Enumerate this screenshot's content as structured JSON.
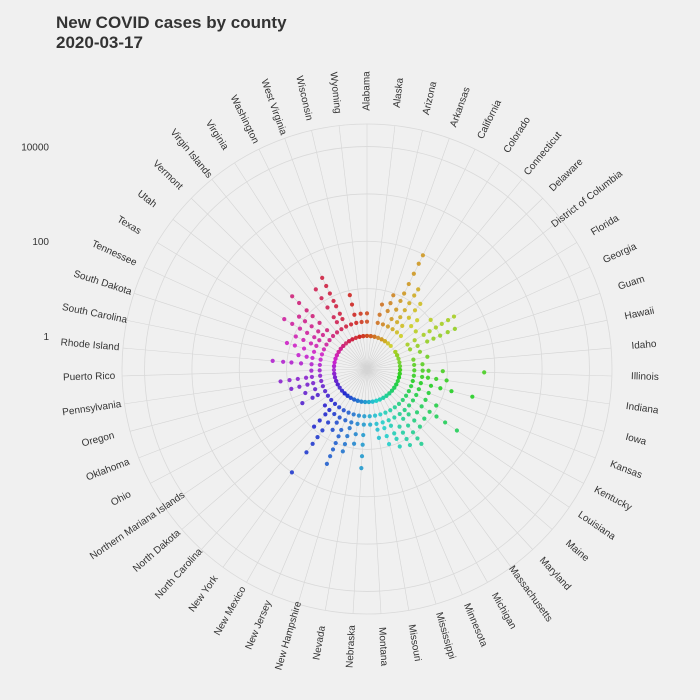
{
  "chart_data": {
    "type": "scatter",
    "coordinate_system": "polar",
    "title": [
      "New COVID cases by county",
      "2020-03-17"
    ],
    "radial_scale": "log10",
    "radial_ticks": [
      "1",
      "100",
      "10000"
    ],
    "radial_range": [
      0.2,
      30000
    ],
    "grid": true,
    "legend": "none",
    "categories": [
      "Alabama",
      "Alaska",
      "Arizona",
      "Arkansas",
      "California",
      "Colorado",
      "Connecticut",
      "Delaware",
      "District of Columbia",
      "Florida",
      "Georgia",
      "Guam",
      "Hawaii",
      "Idaho",
      "Illinois",
      "Indiana",
      "Iowa",
      "Kansas",
      "Kentucky",
      "Louisiana",
      "Maine",
      "Maryland",
      "Massachusetts",
      "Michigan",
      "Minnesota",
      "Mississippi",
      "Missouri",
      "Montana",
      "Nebraska",
      "Nevada",
      "New Hampshire",
      "New Jersey",
      "New Mexico",
      "New York",
      "North Carolina",
      "North Dakota",
      "Northern Mariana Islands",
      "Ohio",
      "Oklahoma",
      "Oregon",
      "Pennsylvania",
      "Puerto Rico",
      "Rhode Island",
      "South Carolina",
      "South Dakota",
      "Tennessee",
      "Texas",
      "Utah",
      "Vermont",
      "Virgin Islands",
      "Virginia",
      "Washington",
      "West Virginia",
      "Wisconsin",
      "Wyoming"
    ],
    "series": [
      {
        "category": "Alabama",
        "values": [
          1,
          1,
          2,
          3
        ]
      },
      {
        "category": "Alaska",
        "values": [
          1,
          1
        ]
      },
      {
        "category": "Arizona",
        "values": [
          1,
          1,
          2,
          3,
          5
        ]
      },
      {
        "category": "Arkansas",
        "values": [
          1,
          2,
          4,
          6,
          9
        ]
      },
      {
        "category": "California",
        "values": [
          1,
          1,
          2,
          3,
          5,
          8,
          12,
          20,
          35,
          60,
          95
        ]
      },
      {
        "category": "Colorado",
        "values": [
          1,
          1,
          2,
          3,
          4,
          6,
          9,
          14,
          20
        ]
      },
      {
        "category": "Connecticut",
        "values": [
          1,
          2,
          3,
          5,
          8,
          12
        ]
      },
      {
        "category": "Delaware",
        "values": [
          1,
          2,
          4,
          6
        ]
      },
      {
        "category": "District of Columbia",
        "values": [
          4,
          10
        ]
      },
      {
        "category": "Florida",
        "values": [
          1,
          1,
          2,
          3,
          5,
          7,
          10,
          14,
          20,
          28
        ]
      },
      {
        "category": "Georgia",
        "values": [
          1,
          1,
          2,
          3,
          5,
          7,
          10,
          15,
          22
        ]
      },
      {
        "category": "Guam",
        "values": [
          1,
          3
        ]
      },
      {
        "category": "Hawaii",
        "values": [
          1,
          2,
          4
        ]
      },
      {
        "category": "Idaho",
        "values": [
          1,
          2,
          3
        ]
      },
      {
        "category": "Illinois",
        "values": [
          1,
          1,
          2,
          3,
          4,
          8,
          60
        ]
      },
      {
        "category": "Indiana",
        "values": [
          1,
          1,
          2,
          3,
          4,
          6,
          10
        ]
      },
      {
        "category": "Iowa",
        "values": [
          1,
          1,
          2,
          3,
          5,
          8,
          14,
          40
        ]
      },
      {
        "category": "Kansas",
        "values": [
          1,
          2,
          3,
          5
        ]
      },
      {
        "category": "Kentucky",
        "values": [
          1,
          1,
          2,
          3,
          5,
          9
        ]
      },
      {
        "category": "Louisiana",
        "values": [
          1,
          1,
          2,
          3,
          5,
          8,
          12,
          20,
          40
        ]
      },
      {
        "category": "Maine",
        "values": [
          1,
          1,
          2,
          3,
          5,
          8
        ]
      },
      {
        "category": "Maryland",
        "values": [
          1,
          1,
          2,
          3,
          4,
          6,
          9
        ]
      },
      {
        "category": "Massachusetts",
        "values": [
          1,
          1,
          2,
          3,
          4,
          6,
          9,
          13,
          18
        ]
      },
      {
        "category": "Michigan",
        "values": [
          1,
          1,
          2,
          3,
          5,
          7,
          10,
          14
        ]
      },
      {
        "category": "Minnesota",
        "values": [
          1,
          1,
          2,
          3,
          4,
          6,
          8,
          12
        ]
      },
      {
        "category": "Mississippi",
        "values": [
          1,
          1,
          2,
          3,
          4,
          6,
          9
        ]
      },
      {
        "category": "Missouri",
        "values": [
          1,
          1,
          2,
          3,
          4,
          6
        ]
      },
      {
        "category": "Montana",
        "values": [
          1,
          1,
          2,
          3
        ]
      },
      {
        "category": "Nebraska",
        "values": [
          1,
          1,
          2,
          3,
          5,
          8,
          14,
          25
        ]
      },
      {
        "category": "Nevada",
        "values": [
          1,
          1,
          2,
          3,
          5,
          8
        ]
      },
      {
        "category": "New Hampshire",
        "values": [
          1,
          1,
          2,
          3,
          4,
          6,
          9,
          13
        ]
      },
      {
        "category": "New Jersey",
        "values": [
          1,
          1,
          2,
          3,
          5,
          7,
          10,
          14,
          20,
          30
        ]
      },
      {
        "category": "New Mexico",
        "values": [
          1,
          1,
          2,
          3,
          4,
          6
        ]
      },
      {
        "category": "New York",
        "values": [
          1,
          1,
          2,
          3,
          5,
          8,
          12,
          18,
          30,
          100
        ]
      },
      {
        "category": "North Carolina",
        "values": [
          1,
          1,
          2,
          3,
          4,
          6,
          9
        ]
      },
      {
        "category": "North Dakota",
        "values": [
          1,
          2,
          3
        ]
      },
      {
        "category": "Northern Mariana Islands",
        "values": [
          1,
          2
        ]
      },
      {
        "category": "Ohio",
        "values": [
          1,
          1,
          2,
          3,
          4,
          7
        ]
      },
      {
        "category": "Oklahoma",
        "values": [
          1,
          1,
          2,
          3,
          5
        ]
      },
      {
        "category": "Oregon",
        "values": [
          1,
          1,
          2,
          3,
          4,
          6,
          9
        ]
      },
      {
        "category": "Pennsylvania",
        "values": [
          1,
          1,
          2,
          3,
          4,
          6,
          9,
          14
        ]
      },
      {
        "category": "Puerto Rico",
        "values": [
          1,
          2,
          3
        ]
      },
      {
        "category": "Rhode Island",
        "values": [
          1,
          1,
          2,
          3,
          5,
          8,
          12,
          20
        ]
      },
      {
        "category": "South Carolina",
        "values": [
          1,
          1,
          2,
          3,
          4,
          6
        ]
      },
      {
        "category": "South Dakota",
        "values": [
          1,
          1,
          2,
          3,
          5,
          8,
          12
        ]
      },
      {
        "category": "Tennessee",
        "values": [
          1,
          1,
          2,
          3,
          4,
          6,
          9
        ]
      },
      {
        "category": "Texas",
        "values": [
          1,
          1,
          2,
          3,
          4,
          6,
          9,
          14,
          22
        ]
      },
      {
        "category": "Utah",
        "values": [
          1,
          1,
          2,
          3,
          4,
          6,
          9,
          13
        ]
      },
      {
        "category": "Vermont",
        "values": [
          1,
          1,
          2,
          3,
          5,
          8,
          12,
          20,
          32
        ]
      },
      {
        "category": "Virgin Islands",
        "values": [
          1,
          2
        ]
      },
      {
        "category": "Virginia",
        "values": [
          1,
          1,
          2,
          3,
          4,
          7,
          12,
          20
        ]
      },
      {
        "category": "Washington",
        "values": [
          1,
          1,
          2,
          3,
          4,
          6,
          8,
          12,
          18,
          28
        ]
      },
      {
        "category": "West Virginia",
        "values": [
          1,
          2
        ]
      },
      {
        "category": "Wisconsin",
        "values": [
          1,
          1,
          2,
          3,
          5,
          8
        ]
      },
      {
        "category": "Wyoming",
        "values": [
          1,
          1,
          2,
          3
        ]
      }
    ]
  }
}
